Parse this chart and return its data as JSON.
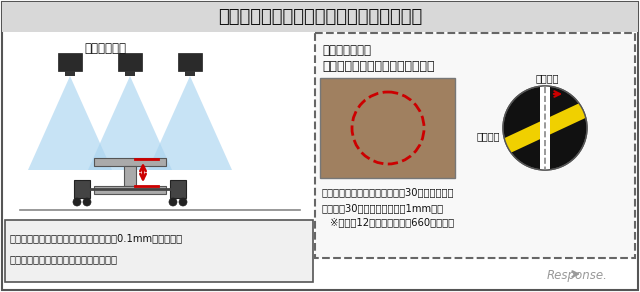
{
  "title": "最新のセンサにて締結ボルトの緩みを検知",
  "left_subtitle": "測定イメージ",
  "right_title_1": "参考：現行装置",
  "right_title_2": "ボルトキャップを撮影し画像処理",
  "label_looseness_none": "緩み無し",
  "label_looseness_yes": "緩み有り",
  "bullet1": "・レール頭頂面とボルト頭頂面の距離を0.1mm単位で測定",
  "bullet2": "・過去測定時との比較により緩みを判定",
  "right_bullet1": "・ボルトキャップの回転角度を30度単位で測定",
  "right_bullet2": "・回転角30度＝ボルトの緩み1mm相当",
  "right_bullet3": "※在来線12線区において約660万個使用",
  "bg_color": "#ffffff",
  "border_color": "#555555",
  "title_bg": "#d8d8d8",
  "right_box_bg": "#f8f8f8",
  "beam_color": "#aad4f0",
  "arrow_color": "#cc0000",
  "response_color": "#888888"
}
